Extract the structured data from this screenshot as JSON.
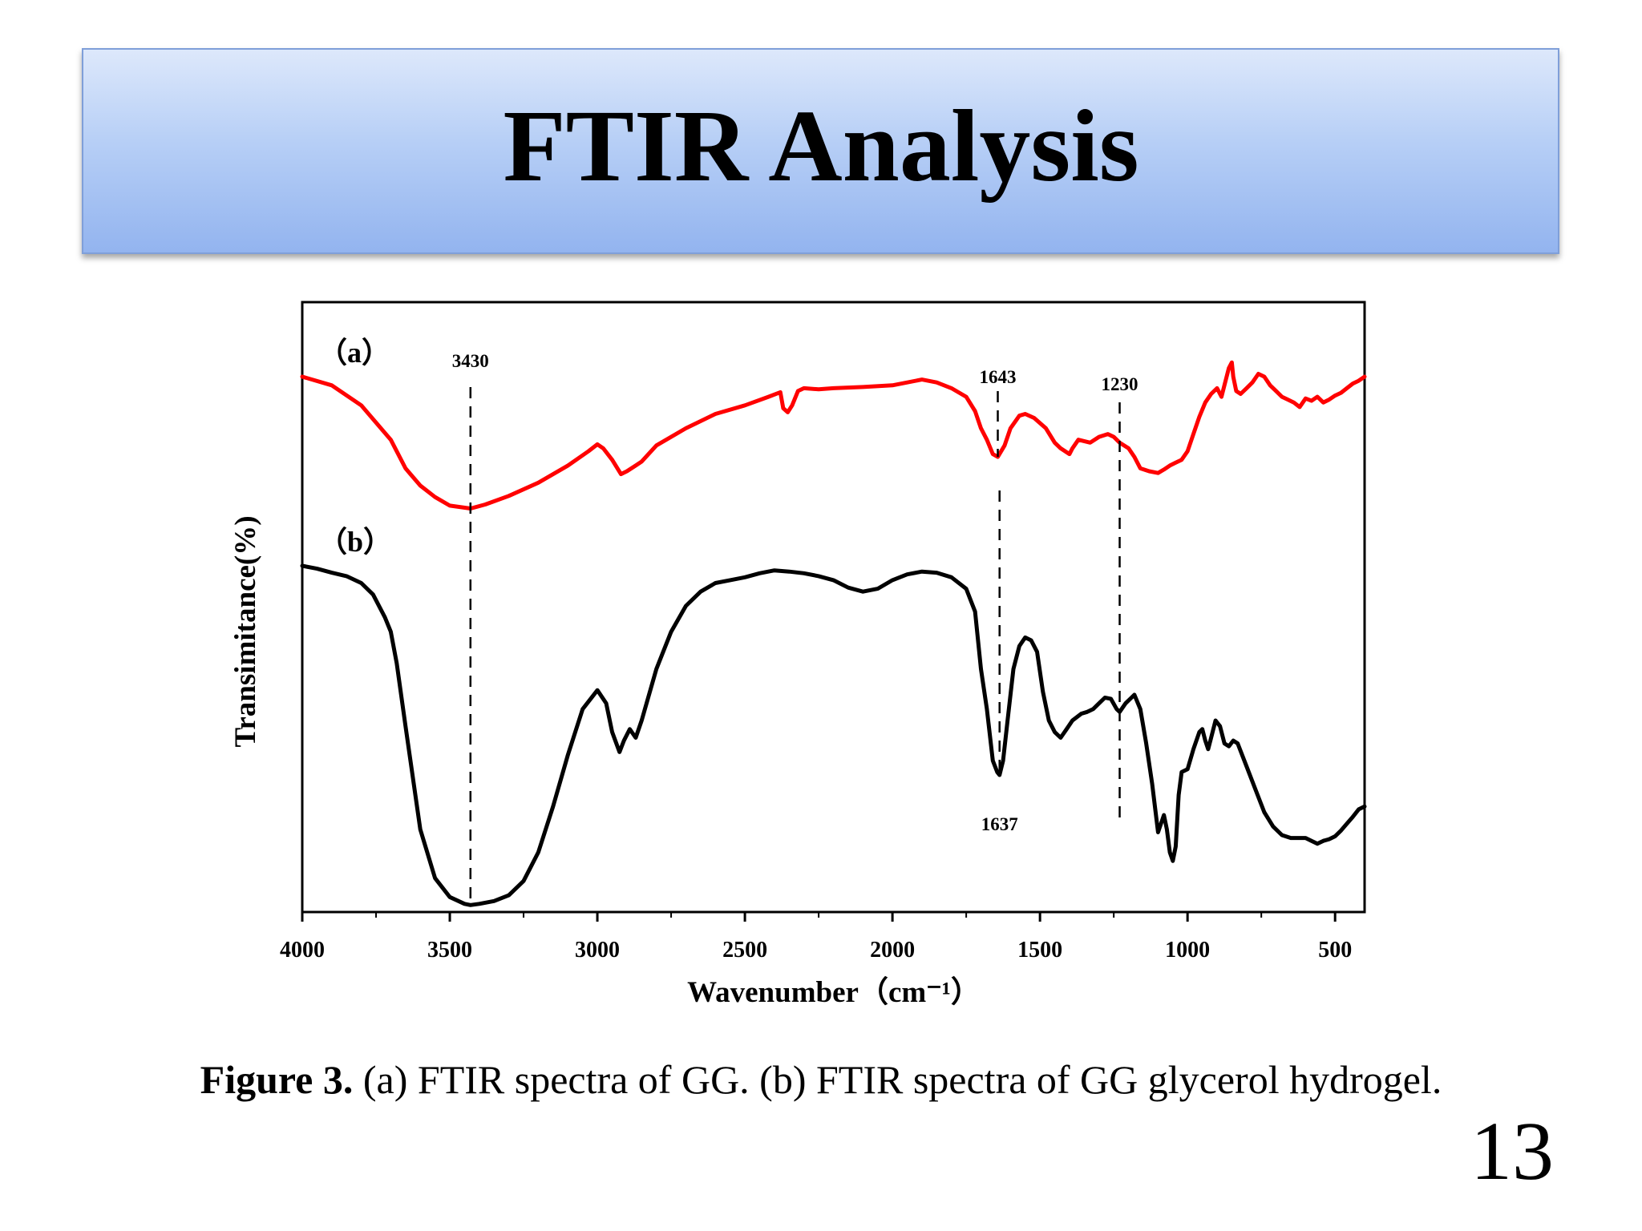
{
  "slide": {
    "title": "FTIR Analysis",
    "caption_label": "Figure 3.",
    "caption_text": " (a) FTIR spectra of GG. (b) FTIR spectra of GG glycerol hydrogel.",
    "slide_number": "13"
  },
  "chart_data": {
    "type": "line",
    "title": "",
    "xlabel": "Wavenumber（cm⁻¹）",
    "ylabel": "Transimitance(%)",
    "xlim": [
      4000,
      400
    ],
    "x_reversed": true,
    "ylim": [
      0,
      100
    ],
    "y_ticks_shown": false,
    "grid": false,
    "x_ticks": [
      4000,
      3500,
      3000,
      2500,
      2000,
      1500,
      1000,
      500
    ],
    "x_tick_labels": [
      "4000",
      "3500",
      "3000",
      "2500",
      "2000",
      "1500",
      "1000",
      "500"
    ],
    "series": [
      {
        "name": "（a）",
        "color": "#ff0000",
        "points": [
          [
            4000,
            93
          ],
          [
            3900,
            91.5
          ],
          [
            3800,
            88
          ],
          [
            3700,
            82
          ],
          [
            3650,
            77
          ],
          [
            3600,
            74
          ],
          [
            3550,
            72
          ],
          [
            3500,
            70.5
          ],
          [
            3430,
            70
          ],
          [
            3380,
            70.7
          ],
          [
            3300,
            72.2
          ],
          [
            3200,
            74.5
          ],
          [
            3100,
            77.5
          ],
          [
            3030,
            80
          ],
          [
            3000,
            81.2
          ],
          [
            2980,
            80.5
          ],
          [
            2950,
            78.5
          ],
          [
            2920,
            76
          ],
          [
            2900,
            76.5
          ],
          [
            2870,
            77.5
          ],
          [
            2850,
            78.2
          ],
          [
            2800,
            81
          ],
          [
            2700,
            84
          ],
          [
            2600,
            86.5
          ],
          [
            2500,
            88
          ],
          [
            2420,
            89.5
          ],
          [
            2380,
            90.3
          ],
          [
            2370,
            87.5
          ],
          [
            2355,
            86.8
          ],
          [
            2340,
            88
          ],
          [
            2320,
            90.5
          ],
          [
            2300,
            91
          ],
          [
            2250,
            90.8
          ],
          [
            2200,
            91
          ],
          [
            2100,
            91.2
          ],
          [
            2000,
            91.5
          ],
          [
            1900,
            92.5
          ],
          [
            1850,
            92
          ],
          [
            1800,
            91
          ],
          [
            1750,
            89.5
          ],
          [
            1720,
            87
          ],
          [
            1700,
            84
          ],
          [
            1680,
            82
          ],
          [
            1660,
            79.5
          ],
          [
            1643,
            79
          ],
          [
            1620,
            81
          ],
          [
            1600,
            84
          ],
          [
            1570,
            86.2
          ],
          [
            1550,
            86.5
          ],
          [
            1520,
            85.8
          ],
          [
            1480,
            84
          ],
          [
            1450,
            81.5
          ],
          [
            1430,
            80.5
          ],
          [
            1400,
            79.5
          ],
          [
            1390,
            80.5
          ],
          [
            1370,
            82
          ],
          [
            1330,
            81.5
          ],
          [
            1300,
            82.5
          ],
          [
            1270,
            83
          ],
          [
            1250,
            82.5
          ],
          [
            1230,
            81.5
          ],
          [
            1200,
            80.5
          ],
          [
            1180,
            79
          ],
          [
            1160,
            77
          ],
          [
            1130,
            76.5
          ],
          [
            1100,
            76.2
          ],
          [
            1080,
            76.8
          ],
          [
            1060,
            77.5
          ],
          [
            1040,
            78
          ],
          [
            1020,
            78.5
          ],
          [
            1000,
            80
          ],
          [
            980,
            83
          ],
          [
            960,
            86
          ],
          [
            940,
            88.5
          ],
          [
            920,
            90
          ],
          [
            900,
            91
          ],
          [
            885,
            89.5
          ],
          [
            870,
            92.5
          ],
          [
            860,
            94.5
          ],
          [
            850,
            95.5
          ],
          [
            845,
            93
          ],
          [
            835,
            90.5
          ],
          [
            820,
            90
          ],
          [
            800,
            91
          ],
          [
            780,
            92
          ],
          [
            760,
            93.5
          ],
          [
            740,
            93
          ],
          [
            720,
            91.5
          ],
          [
            700,
            90.5
          ],
          [
            680,
            89.5
          ],
          [
            660,
            89
          ],
          [
            640,
            88.5
          ],
          [
            620,
            87.7
          ],
          [
            600,
            89.2
          ],
          [
            580,
            88.8
          ],
          [
            560,
            89.5
          ],
          [
            540,
            88.5
          ],
          [
            520,
            89
          ],
          [
            500,
            89.7
          ],
          [
            480,
            90.2
          ],
          [
            460,
            91
          ],
          [
            440,
            91.8
          ],
          [
            420,
            92.3
          ],
          [
            400,
            93
          ]
        ]
      },
      {
        "name": "（b）",
        "color": "#000000",
        "points": [
          [
            4000,
            60
          ],
          [
            3950,
            59.5
          ],
          [
            3900,
            58.8
          ],
          [
            3850,
            58.2
          ],
          [
            3800,
            57
          ],
          [
            3760,
            55
          ],
          [
            3720,
            51
          ],
          [
            3700,
            48.5
          ],
          [
            3680,
            43
          ],
          [
            3650,
            32
          ],
          [
            3600,
            14
          ],
          [
            3550,
            5.5
          ],
          [
            3500,
            2.2
          ],
          [
            3450,
            1
          ],
          [
            3430,
            0.8
          ],
          [
            3400,
            1
          ],
          [
            3350,
            1.5
          ],
          [
            3300,
            2.5
          ],
          [
            3250,
            5
          ],
          [
            3200,
            10
          ],
          [
            3150,
            18
          ],
          [
            3100,
            27
          ],
          [
            3050,
            35
          ],
          [
            3000,
            38.3
          ],
          [
            2970,
            36
          ],
          [
            2950,
            31
          ],
          [
            2925,
            27.5
          ],
          [
            2910,
            29.5
          ],
          [
            2890,
            31.5
          ],
          [
            2870,
            30
          ],
          [
            2850,
            33
          ],
          [
            2800,
            42
          ],
          [
            2750,
            48.5
          ],
          [
            2700,
            53
          ],
          [
            2650,
            55.5
          ],
          [
            2600,
            57
          ],
          [
            2550,
            57.5
          ],
          [
            2500,
            58
          ],
          [
            2450,
            58.7
          ],
          [
            2400,
            59.2
          ],
          [
            2350,
            59
          ],
          [
            2300,
            58.7
          ],
          [
            2250,
            58.2
          ],
          [
            2200,
            57.5
          ],
          [
            2150,
            56.2
          ],
          [
            2100,
            55.5
          ],
          [
            2050,
            56
          ],
          [
            2000,
            57.5
          ],
          [
            1950,
            58.5
          ],
          [
            1900,
            59
          ],
          [
            1850,
            58.8
          ],
          [
            1800,
            58
          ],
          [
            1750,
            56
          ],
          [
            1720,
            52
          ],
          [
            1700,
            42
          ],
          [
            1680,
            35
          ],
          [
            1660,
            26
          ],
          [
            1645,
            24
          ],
          [
            1637,
            23.5
          ],
          [
            1625,
            26
          ],
          [
            1610,
            33
          ],
          [
            1590,
            42
          ],
          [
            1570,
            46
          ],
          [
            1550,
            47.5
          ],
          [
            1530,
            47
          ],
          [
            1510,
            45
          ],
          [
            1490,
            38
          ],
          [
            1470,
            33
          ],
          [
            1450,
            31
          ],
          [
            1430,
            30
          ],
          [
            1410,
            31.5
          ],
          [
            1390,
            33
          ],
          [
            1360,
            34.2
          ],
          [
            1340,
            34.5
          ],
          [
            1320,
            35
          ],
          [
            1300,
            36
          ],
          [
            1280,
            37
          ],
          [
            1260,
            36.8
          ],
          [
            1240,
            35
          ],
          [
            1230,
            34.5
          ],
          [
            1210,
            36
          ],
          [
            1190,
            37
          ],
          [
            1180,
            37.5
          ],
          [
            1160,
            35
          ],
          [
            1140,
            29
          ],
          [
            1120,
            22
          ],
          [
            1100,
            13.5
          ],
          [
            1080,
            16.5
          ],
          [
            1070,
            14
          ],
          [
            1060,
            10
          ],
          [
            1050,
            8.5
          ],
          [
            1040,
            11
          ],
          [
            1030,
            20
          ],
          [
            1020,
            24
          ],
          [
            1000,
            24.5
          ],
          [
            980,
            28
          ],
          [
            960,
            31
          ],
          [
            950,
            31.5
          ],
          [
            940,
            29.5
          ],
          [
            930,
            28
          ],
          [
            920,
            30
          ],
          [
            905,
            33
          ],
          [
            890,
            32
          ],
          [
            875,
            29
          ],
          [
            860,
            28.5
          ],
          [
            845,
            29.5
          ],
          [
            830,
            29
          ],
          [
            800,
            25
          ],
          [
            770,
            21
          ],
          [
            740,
            17
          ],
          [
            710,
            14.5
          ],
          [
            680,
            13
          ],
          [
            650,
            12.5
          ],
          [
            620,
            12.5
          ],
          [
            600,
            12.5
          ],
          [
            580,
            12
          ],
          [
            560,
            11.5
          ],
          [
            540,
            12
          ],
          [
            520,
            12.3
          ],
          [
            500,
            12.8
          ],
          [
            480,
            13.8
          ],
          [
            460,
            15
          ],
          [
            440,
            16.2
          ],
          [
            420,
            17.5
          ],
          [
            400,
            18
          ]
        ]
      }
    ],
    "annotations": [
      {
        "x": 3430,
        "label": "3430",
        "position": "top"
      },
      {
        "x": 1643,
        "label": "1643",
        "position": "top"
      },
      {
        "x": 1230,
        "label": "1230",
        "position": "top"
      },
      {
        "x": 1637,
        "label": "1637",
        "position": "bottom"
      }
    ]
  }
}
